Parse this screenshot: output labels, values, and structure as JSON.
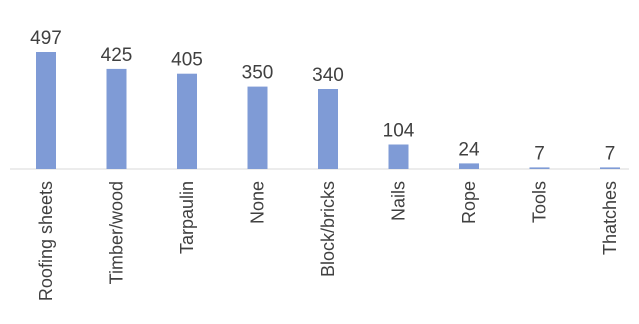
{
  "chart_data": {
    "type": "bar",
    "categories": [
      "Roofing sheets",
      "Timber/wood",
      "Tarpaulin",
      "None",
      "Block/bricks",
      "Nails",
      "Rope",
      "Tools",
      "Thatches"
    ],
    "values": [
      497,
      425,
      405,
      350,
      340,
      104,
      24,
      7,
      7
    ],
    "data_labels": [
      "497",
      "425",
      "405",
      "350",
      "340",
      "104",
      "24",
      "7",
      "7"
    ],
    "title": "",
    "xlabel": "",
    "ylabel": "",
    "ylim": [
      0,
      497
    ],
    "grid": false,
    "legend": "none",
    "bar_color": "#7f9bd6",
    "text_color": "#404040",
    "axis_color": "#d9d9d9"
  }
}
